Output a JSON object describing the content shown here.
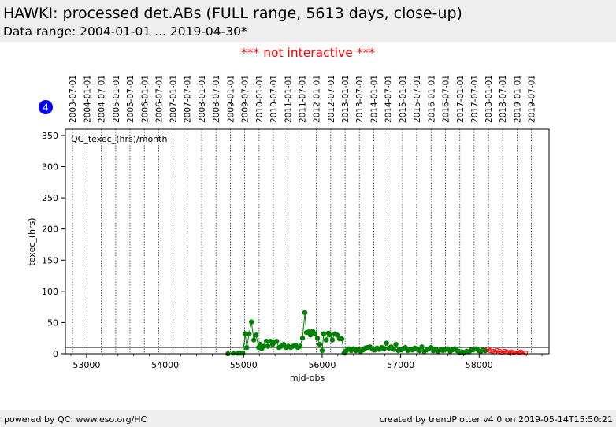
{
  "header": {
    "title": "HAWKI: processed det.ABs (FULL range, 5613 days, close-up)",
    "subtitle": "Data range: 2004-01-01 ... 2019-04-30*"
  },
  "notice": "*** not interactive ***",
  "badge": "4",
  "footer": {
    "left": "powered by QC: www.eso.org/HC",
    "right": "created by trendPlotter v4.0 on 2019-05-14T15:50:21"
  },
  "colors": {
    "series_main": "#008000",
    "series_recent": "#ff0000",
    "notice": "#ff0000",
    "badge": "#0000ff",
    "background_bar": "#eeeeee"
  },
  "chart_data": {
    "type": "line",
    "xlabel": "mjd-obs",
    "ylabel": "texec_(hrs)",
    "annotation": "QC_texec_(hrs)/month",
    "xlim": [
      52730,
      58890
    ],
    "ylim": [
      0,
      360
    ],
    "x_ticks": [
      53000,
      54000,
      55000,
      56000,
      57000,
      58000
    ],
    "y_ticks": [
      0,
      50,
      100,
      150,
      200,
      250,
      300,
      350
    ],
    "reference_line_y": 10,
    "date_ticks": [
      {
        "label": "2003-07-01",
        "mjd": 52821
      },
      {
        "label": "2004-01-01",
        "mjd": 53005
      },
      {
        "label": "2004-07-01",
        "mjd": 53187
      },
      {
        "label": "2005-01-01",
        "mjd": 53371
      },
      {
        "label": "2005-07-01",
        "mjd": 53552
      },
      {
        "label": "2006-01-01",
        "mjd": 53736
      },
      {
        "label": "2006-07-01",
        "mjd": 53917
      },
      {
        "label": "2007-01-01",
        "mjd": 54101
      },
      {
        "label": "2007-07-01",
        "mjd": 54282
      },
      {
        "label": "2008-01-01",
        "mjd": 54466
      },
      {
        "label": "2008-07-01",
        "mjd": 54648
      },
      {
        "label": "2009-01-01",
        "mjd": 54832
      },
      {
        "label": "2009-07-01",
        "mjd": 55013
      },
      {
        "label": "2010-01-01",
        "mjd": 55197
      },
      {
        "label": "2010-07-01",
        "mjd": 55378
      },
      {
        "label": "2011-01-01",
        "mjd": 55562
      },
      {
        "label": "2011-07-01",
        "mjd": 55743
      },
      {
        "label": "2012-01-01",
        "mjd": 55927
      },
      {
        "label": "2012-07-01",
        "mjd": 56109
      },
      {
        "label": "2013-01-01",
        "mjd": 56293
      },
      {
        "label": "2013-07-01",
        "mjd": 56474
      },
      {
        "label": "2014-01-01",
        "mjd": 56658
      },
      {
        "label": "2014-07-01",
        "mjd": 56839
      },
      {
        "label": "2015-01-01",
        "mjd": 57023
      },
      {
        "label": "2015-07-01",
        "mjd": 57204
      },
      {
        "label": "2016-01-01",
        "mjd": 57388
      },
      {
        "label": "2016-07-01",
        "mjd": 57570
      },
      {
        "label": "2017-01-01",
        "mjd": 57754
      },
      {
        "label": "2017-07-01",
        "mjd": 57935
      },
      {
        "label": "2018-01-01",
        "mjd": 58119
      },
      {
        "label": "2018-07-01",
        "mjd": 58300
      },
      {
        "label": "2019-01-01",
        "mjd": 58484
      },
      {
        "label": "2019-07-01",
        "mjd": 58665
      }
    ],
    "series": [
      {
        "x": [
          54800,
          54870,
          54930,
          54960,
          54990,
          55020,
          55040,
          55070,
          55100,
          55130,
          55160,
          55190,
          55210,
          55230,
          55260,
          55290,
          55310,
          55340,
          55370,
          55390,
          55420,
          55450,
          55480,
          55510,
          55540,
          55570,
          55600,
          55630,
          55660,
          55690,
          55720,
          55750,
          55780,
          55800,
          55830,
          55850,
          55880,
          55910,
          55940,
          55970,
          56000,
          56020,
          56050,
          56080,
          56100,
          56130,
          56160,
          56190,
          56220,
          56250,
          56280,
          56310,
          56340,
          56370,
          56400,
          56430,
          56460,
          56490,
          56520,
          56550,
          56580,
          56610,
          56640,
          56670,
          56700,
          56730,
          56760,
          56790,
          56820,
          56850,
          56880,
          56910,
          56940,
          56970,
          57000,
          57030,
          57060,
          57090,
          57120,
          57150,
          57180,
          57210,
          57240,
          57270,
          57300,
          57330,
          57360,
          57390,
          57420,
          57450,
          57480,
          57510,
          57540,
          57570,
          57600,
          57630,
          57660,
          57690,
          57720,
          57750,
          57780,
          57810,
          57840,
          57870,
          57900,
          57930,
          57960,
          57990,
          58020,
          58050,
          58080
        ],
        "y": [
          0,
          1,
          1,
          1,
          1,
          32,
          10,
          32,
          51,
          22,
          30,
          10,
          15,
          8,
          12,
          20,
          12,
          20,
          15,
          18,
          20,
          10,
          12,
          15,
          10,
          12,
          10,
          12,
          14,
          10,
          12,
          25,
          66,
          34,
          35,
          30,
          36,
          32,
          25,
          15,
          5,
          32,
          22,
          33,
          30,
          22,
          32,
          30,
          24,
          24,
          1,
          5,
          8,
          5,
          8,
          5,
          7,
          4,
          6,
          9,
          10,
          11,
          7,
          6,
          9,
          7,
          10,
          8,
          17,
          9,
          11,
          7,
          15,
          5,
          6,
          8,
          10,
          5,
          7,
          6,
          9,
          8,
          5,
          11,
          4,
          6,
          8,
          10,
          5,
          7,
          4,
          6,
          5,
          7,
          8,
          4,
          6,
          8,
          5,
          2,
          3,
          2,
          4,
          3,
          6,
          7,
          8,
          5,
          4,
          6,
          5
        ]
      },
      {
        "x": [
          58110,
          58140,
          58170,
          58200,
          58230,
          58260,
          58290,
          58320,
          58350,
          58380,
          58410,
          58440,
          58470,
          58500,
          58530,
          58560,
          58590
        ],
        "y": [
          7,
          5,
          4,
          3,
          5,
          4,
          2,
          4,
          3,
          2,
          3,
          2,
          1,
          2,
          3,
          1,
          1
        ]
      }
    ]
  }
}
